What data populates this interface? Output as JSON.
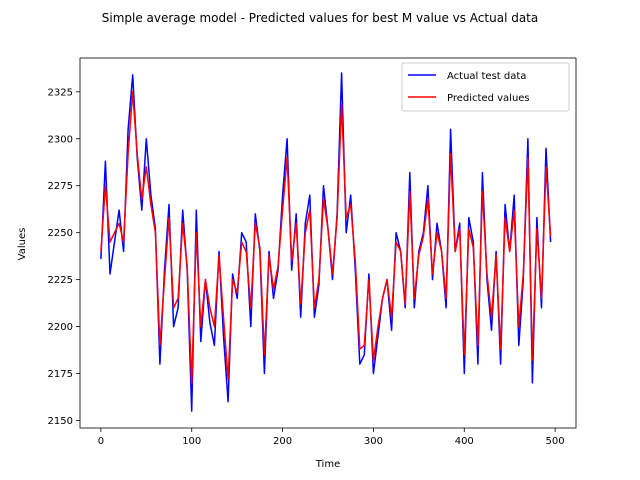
{
  "chart_data": {
    "type": "line",
    "title": "Simple average model - Predicted values for best M value vs Actual data",
    "xlabel": "Time",
    "ylabel": "Values",
    "xlim": [
      -23,
      523
    ],
    "ylim": [
      2146,
      2343
    ],
    "xticks": [
      0,
      100,
      200,
      300,
      400,
      500
    ],
    "yticks": [
      2150,
      2175,
      2200,
      2225,
      2250,
      2275,
      2300,
      2325
    ],
    "grid": false,
    "legend_position": "top-right",
    "series": [
      {
        "name": "Actual test data",
        "color": "#0000ff",
        "x": [
          0,
          5,
          10,
          15,
          20,
          25,
          30,
          35,
          40,
          45,
          50,
          55,
          60,
          65,
          70,
          75,
          80,
          85,
          90,
          95,
          100,
          105,
          110,
          115,
          120,
          125,
          130,
          135,
          140,
          145,
          150,
          155,
          160,
          165,
          170,
          175,
          180,
          185,
          190,
          195,
          200,
          205,
          210,
          215,
          220,
          225,
          230,
          235,
          240,
          245,
          250,
          255,
          260,
          265,
          270,
          275,
          280,
          285,
          290,
          295,
          300,
          305,
          310,
          315,
          320,
          325,
          330,
          335,
          340,
          345,
          350,
          355,
          360,
          365,
          370,
          375,
          380,
          385,
          390,
          395,
          400,
          405,
          410,
          415,
          420,
          425,
          430,
          435,
          440,
          445,
          450,
          455,
          460,
          465,
          470,
          475,
          480,
          485,
          490,
          495
        ],
        "y": [
          2236,
          2288,
          2228,
          2245,
          2262,
          2240,
          2305,
          2334,
          2290,
          2262,
          2300,
          2270,
          2252,
          2180,
          2230,
          2265,
          2200,
          2210,
          2262,
          2230,
          2155,
          2262,
          2192,
          2225,
          2202,
          2190,
          2240,
          2195,
          2160,
          2228,
          2215,
          2250,
          2245,
          2200,
          2260,
          2240,
          2175,
          2240,
          2215,
          2230,
          2270,
          2300,
          2230,
          2260,
          2205,
          2255,
          2270,
          2205,
          2222,
          2275,
          2252,
          2225,
          2260,
          2335,
          2250,
          2270,
          2230,
          2180,
          2185,
          2228,
          2175,
          2195,
          2215,
          2225,
          2198,
          2250,
          2240,
          2210,
          2282,
          2210,
          2240,
          2250,
          2275,
          2225,
          2255,
          2240,
          2210,
          2305,
          2240,
          2255,
          2175,
          2258,
          2245,
          2180,
          2282,
          2225,
          2198,
          2240,
          2180,
          2265,
          2240,
          2270,
          2190,
          2225,
          2300,
          2170,
          2258,
          2210,
          2295,
          2245
        ]
      },
      {
        "name": "Predicted values",
        "color": "#ff0000",
        "x": [
          0,
          5,
          10,
          15,
          20,
          25,
          30,
          35,
          40,
          45,
          50,
          55,
          60,
          65,
          70,
          75,
          80,
          85,
          90,
          95,
          100,
          105,
          110,
          115,
          120,
          125,
          130,
          135,
          140,
          145,
          150,
          155,
          160,
          165,
          170,
          175,
          180,
          185,
          190,
          195,
          200,
          205,
          210,
          215,
          220,
          225,
          230,
          235,
          240,
          245,
          250,
          255,
          260,
          265,
          270,
          275,
          280,
          285,
          290,
          295,
          300,
          305,
          310,
          315,
          320,
          325,
          330,
          335,
          340,
          345,
          350,
          355,
          360,
          365,
          370,
          375,
          380,
          385,
          390,
          395,
          400,
          405,
          410,
          415,
          420,
          425,
          430,
          435,
          440,
          445,
          450,
          455,
          460,
          465,
          470,
          475,
          480,
          485,
          490,
          495
        ],
        "y": [
          2240,
          2275,
          2245,
          2250,
          2255,
          2245,
          2292,
          2325,
          2292,
          2268,
          2285,
          2265,
          2250,
          2190,
          2225,
          2258,
          2210,
          2215,
          2255,
          2232,
          2170,
          2250,
          2200,
          2225,
          2210,
          2200,
          2238,
          2205,
          2172,
          2225,
          2218,
          2245,
          2240,
          2210,
          2255,
          2242,
          2185,
          2238,
          2220,
          2232,
          2262,
          2290,
          2235,
          2255,
          2212,
          2250,
          2262,
          2210,
          2225,
          2268,
          2252,
          2228,
          2258,
          2318,
          2258,
          2265,
          2235,
          2188,
          2190,
          2225,
          2182,
          2200,
          2215,
          2225,
          2205,
          2245,
          2240,
          2212,
          2272,
          2215,
          2238,
          2248,
          2268,
          2228,
          2250,
          2240,
          2215,
          2292,
          2240,
          2252,
          2185,
          2252,
          2242,
          2190,
          2272,
          2228,
          2205,
          2238,
          2188,
          2258,
          2240,
          2262,
          2200,
          2228,
          2290,
          2182,
          2252,
          2215,
          2285,
          2248
        ]
      }
    ]
  }
}
